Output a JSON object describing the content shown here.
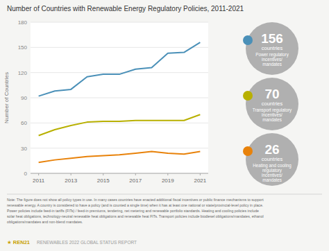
{
  "chart_data": {
    "type": "line",
    "title": "Number of Countries with Renewable Energy Regulatory Policies, 2011-2021",
    "y_label": "Number of Countries",
    "x": [
      2011,
      2012,
      2013,
      2014,
      2015,
      2016,
      2017,
      2018,
      2019,
      2020,
      2021
    ],
    "xlim": [
      2010.5,
      2021.5
    ],
    "xticks": [
      2011,
      2013,
      2015,
      2017,
      2019,
      2021
    ],
    "ylim": [
      0,
      180
    ],
    "yticks": [
      0,
      30,
      60,
      90,
      120,
      150,
      180
    ],
    "grid": true,
    "legend": "right",
    "series": [
      {
        "name": "Power regulatory\nincentives/\nmandates",
        "color": "#4a90b8",
        "values": [
          92,
          98,
          100,
          115,
          118,
          118,
          124,
          126,
          143,
          144,
          156
        ]
      },
      {
        "name": "Transport regulatory\nincentives/\nmandates",
        "color": "#b8b000",
        "values": [
          45,
          52,
          57,
          61,
          62,
          62,
          63,
          63,
          63,
          63,
          70
        ]
      },
      {
        "name": "Heating and cooling\nregulatory\nincentives/\nmandates",
        "color": "#e8820a",
        "values": [
          13,
          16,
          18,
          20,
          21,
          22,
          24,
          26,
          24,
          23,
          26
        ]
      }
    ],
    "annotations": [
      {
        "value": 156,
        "label": "countries"
      },
      {
        "value": 70,
        "label": "countries"
      },
      {
        "value": 26,
        "label": "countries"
      }
    ],
    "note": "Note: The figure does not show all policy types in use. In many cases countries have enacted additional fiscal incentives or public finance mechanisms to support\nrenewable energy. A country is considered to have a policy (and is counted a single time) when it has at least one national or state/provincial-level policy in place.\nPower policies include feed-in tariffs (FITs) / feed-in premiums, tendering, net metering and renewable portfolio standards. Heating and cooling policies include\nsolar heat obligations, technology-neutral renewable heat obligations and renewable heat FITs. Transport policies include biodiesel obligations/mandates, ethanol\nobligations/mandates and non-blend mandates.",
    "footer": [
      "★ REN21",
      "RENEWABLES 2022 GLOBAL STATUS REPORT"
    ]
  }
}
